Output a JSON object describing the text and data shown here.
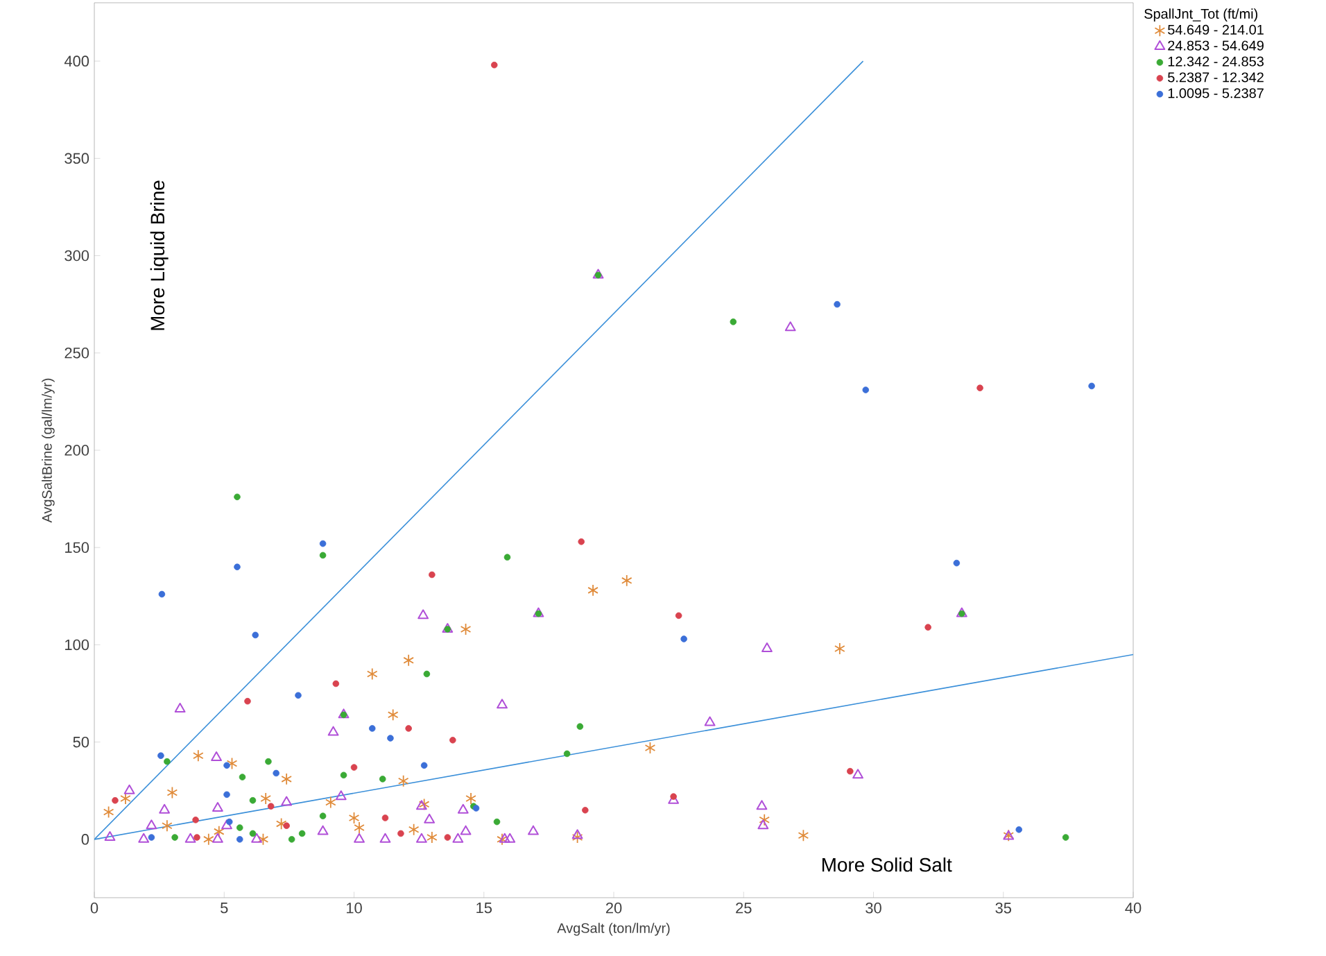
{
  "chart_data": {
    "type": "scatter",
    "xlabel": "AvgSalt (ton/lm/yr)",
    "ylabel": "AvgSaltBrine (gal/lm/yr)",
    "legend_title": "SpallJnt_Tot (ft/mi)",
    "legend": "top right",
    "grid": false,
    "xlim": [
      0,
      40
    ],
    "ylim": [
      -30,
      430
    ],
    "xticks": [
      0,
      5,
      10,
      15,
      20,
      25,
      30,
      35,
      40
    ],
    "yticks": [
      0,
      50,
      100,
      150,
      200,
      250,
      300,
      350,
      400
    ],
    "annotations": [
      "More Liquid Brine",
      "More Solid Salt"
    ],
    "series": [
      {
        "name": "54.649 - 214.01",
        "color": "#e08b3a",
        "marker": "cross",
        "x": [
          20.5,
          19.2,
          14.3,
          28.7,
          21.4,
          27.3,
          25.8,
          35.2,
          12.1,
          10.7,
          11.5,
          4.0,
          5.3,
          3.0,
          0.55,
          1.2,
          7.4,
          11.9,
          6.6,
          9.1,
          2.8,
          7.2,
          10.0,
          10.2,
          12.3,
          12.7,
          13.0,
          4.4,
          6.5,
          4.8,
          14.5,
          15.7,
          18.6
        ],
        "values": [
          133,
          128,
          108,
          98,
          47,
          2,
          10,
          2,
          92,
          85,
          64,
          43,
          39,
          24,
          14,
          21,
          31,
          30,
          21,
          19,
          7,
          8,
          11,
          6,
          5,
          18,
          1,
          0,
          0,
          4,
          21,
          0,
          1
        ]
      },
      {
        "name": "24.853 - 54.649",
        "color": "#b04fd8",
        "marker": "triangle",
        "x": [
          19.4,
          26.8,
          25.9,
          33.4,
          23.7,
          17.1,
          12.66,
          13.6,
          25.7,
          29.4,
          25.75,
          35.2,
          3.3,
          4.7,
          2.7,
          4.75,
          7.4,
          9.5,
          1.35,
          9.6,
          9.2,
          5.1,
          0.6,
          1.9,
          3.7,
          4.75,
          6.25,
          10.2,
          11.2,
          12.6,
          12.6,
          12.9,
          8.8,
          2.2,
          15.7,
          14.2,
          14.3,
          14.0,
          15.8,
          16.0,
          16.9,
          18.6,
          22.3
        ],
        "values": [
          290,
          263,
          98,
          116,
          60,
          116,
          115,
          108,
          17,
          33,
          7,
          1.5,
          67,
          42,
          15,
          16,
          19,
          22,
          25,
          64,
          55,
          7,
          1,
          0,
          0,
          0,
          0,
          0,
          0,
          17,
          0,
          10,
          4,
          7,
          69,
          15,
          4,
          0,
          0,
          0,
          4,
          2,
          20
        ]
      },
      {
        "name": "12.342 - 24.853",
        "color": "#3aaa35",
        "marker": "circle",
        "x": [
          5.5,
          8.8,
          15.9,
          24.6,
          19.4,
          37.4,
          18.7,
          18.2,
          12.8,
          2.8,
          6.7,
          5.7,
          9.6,
          11.1,
          6.1,
          8.8,
          5.6,
          8.0,
          7.6,
          3.1,
          6.1,
          15.5,
          14.6,
          17.1,
          33.4,
          13.6,
          9.6
        ],
        "values": [
          176,
          146,
          145,
          266,
          290,
          1,
          58,
          44,
          85,
          40,
          40,
          32,
          33,
          31,
          20,
          12,
          6,
          3,
          0,
          1,
          3,
          9,
          17,
          116,
          116,
          108,
          64
        ]
      },
      {
        "name": "5.2387 - 12.342",
        "color": "#d9434f",
        "marker": "circle",
        "x": [
          15.4,
          34.1,
          32.1,
          29.1,
          22.5,
          18.75,
          13.0,
          9.3,
          5.9,
          12.1,
          10.0,
          0.8,
          11.2,
          3.9,
          7.4,
          6.8,
          3.95,
          11.8,
          13.8,
          18.9,
          22.3,
          13.6
        ],
        "values": [
          398,
          232,
          109,
          35,
          115,
          153,
          136,
          80,
          71,
          57,
          37,
          20,
          11,
          10,
          7,
          17,
          1,
          3,
          51,
          15,
          22,
          1
        ]
      },
      {
        "name": "1.0095 - 5.2387",
        "color": "#3b6fd8",
        "marker": "circle",
        "x": [
          2.6,
          5.5,
          6.2,
          8.8,
          7.85,
          28.6,
          29.7,
          33.2,
          38.4,
          22.7,
          2.56,
          5.1,
          7.0,
          5.1,
          10.7,
          11.4,
          12.7,
          5.6,
          2.2,
          5.2,
          14.7,
          35.6
        ],
        "values": [
          126,
          140,
          105,
          152,
          74,
          275,
          231,
          142,
          233,
          103,
          43,
          38,
          34,
          23,
          57,
          52,
          38,
          0,
          1,
          9,
          16,
          5
        ]
      },
      {
        "type": "line",
        "color": "#3a8fd9",
        "marker": "none",
        "x": [
          0,
          29.6
        ],
        "values": [
          0,
          400
        ]
      },
      {
        "type": "line",
        "color": "#3a8fd9",
        "marker": "none",
        "x": [
          0,
          40
        ],
        "values": [
          0,
          95
        ]
      }
    ]
  }
}
